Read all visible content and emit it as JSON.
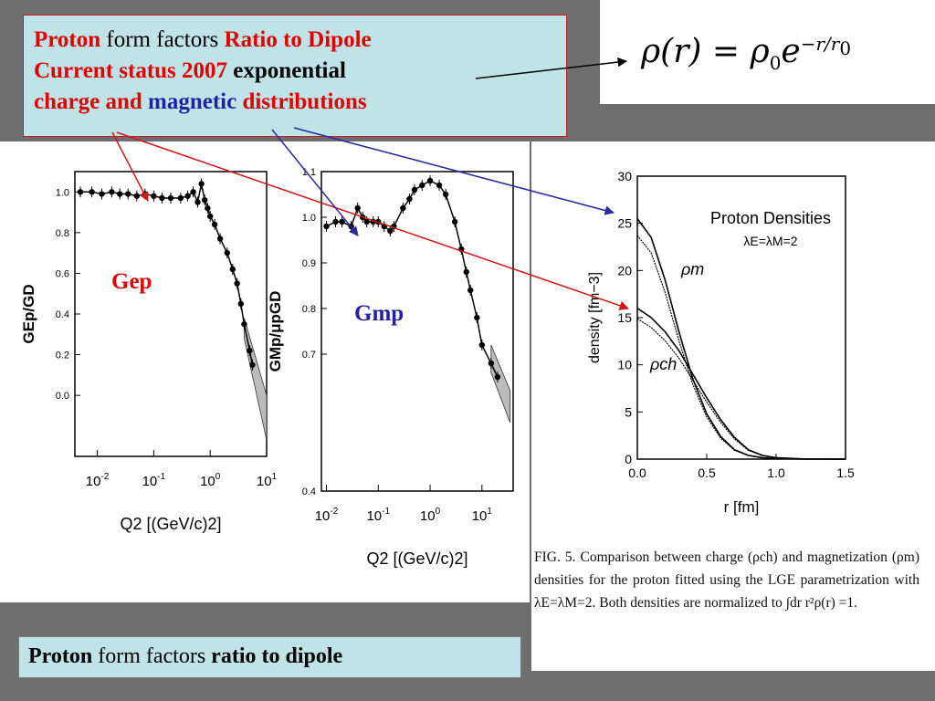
{
  "title": {
    "line1_a": "Proton",
    "line1_b": " form factors ",
    "line1_c": "Ratio to Dipole",
    "line2_a": "Current status  2007",
    "line2_b": " exponential",
    "line3_a": "charge and ",
    "line3_b": "magnetic",
    "line3_c": " distributions"
  },
  "formula": {
    "lhs": "ρ(r) = ρ",
    "sub": "0",
    "e": "e",
    "exp": "−r/r",
    "exp_sub": "0"
  },
  "labels": {
    "gep": "Gep",
    "gmp": "Gmp"
  },
  "caption": "FIG. 5. Comparison between charge (ρch) and magnetization (ρm) densities for the proton fitted using the LGE parametrization with λE=λM=2. Both densities are normalized to ∫dr r²ρ(r) =1.",
  "bottom": {
    "a": "Proton",
    "b": " form factors ",
    "c": "ratio to dipole"
  },
  "colors": {
    "title_red": "#e00000",
    "title_blue": "#2222a0",
    "box_fill": "#bfe3e6",
    "arrow_red": "#d01818",
    "arrow_blue": "#2a2aa0"
  },
  "chart_data": [
    {
      "type": "scatter",
      "xscale": "log",
      "xlim": [
        0.004,
        10
      ],
      "ylim": [
        -0.3,
        1.1
      ],
      "yticks": [
        "0.0",
        "0.2",
        "0.4",
        "0.6",
        "0.8",
        "1.0"
      ],
      "xticks": [
        "10-2",
        "10-1",
        "100",
        "101"
      ],
      "xlabel": "Q2  [(GeV/c)2]",
      "ylabel": "GEp/GD",
      "x": [
        0.005,
        0.008,
        0.012,
        0.018,
        0.025,
        0.035,
        0.05,
        0.07,
        0.1,
        0.14,
        0.2,
        0.3,
        0.4,
        0.5,
        0.6,
        0.7,
        0.8,
        0.9,
        1.0,
        1.2,
        1.5,
        2.0,
        2.5,
        3.0,
        3.5,
        4.0,
        5.0,
        5.6
      ],
      "y": [
        1.0,
        1.0,
        0.99,
        1.0,
        0.99,
        0.99,
        0.98,
        0.99,
        0.98,
        0.97,
        0.97,
        0.97,
        0.98,
        1.0,
        0.95,
        1.04,
        0.96,
        0.92,
        0.88,
        0.84,
        0.77,
        0.7,
        0.62,
        0.55,
        0.45,
        0.35,
        0.22,
        0.15
      ],
      "band": {
        "x": [
          4,
          10
        ],
        "lo": [
          0.28,
          -0.22
        ],
        "hi": [
          0.38,
          0.0
        ]
      }
    },
    {
      "type": "scatter",
      "xscale": "log",
      "xlim": [
        0.008,
        40
      ],
      "ylim": [
        0.4,
        1.1
      ],
      "yticks": [
        "0.4",
        "0.7",
        "0.8",
        "0.9",
        "1.0",
        "1.1"
      ],
      "xticks": [
        "10-2",
        "10-1",
        "100",
        "101"
      ],
      "xlabel": "Q2  [(GeV/c)2]",
      "ylabel": "GMp/μpGD",
      "x": [
        0.01,
        0.015,
        0.02,
        0.03,
        0.04,
        0.05,
        0.06,
        0.08,
        0.1,
        0.13,
        0.17,
        0.2,
        0.3,
        0.4,
        0.5,
        0.7,
        1.0,
        1.5,
        2.0,
        3.0,
        4.0,
        5.0,
        6.0,
        8.0,
        10,
        15,
        20
      ],
      "y": [
        0.98,
        0.99,
        0.99,
        0.98,
        1.02,
        1.0,
        0.99,
        0.99,
        0.99,
        0.98,
        0.97,
        0.98,
        1.02,
        1.04,
        1.06,
        1.07,
        1.08,
        1.07,
        1.05,
        0.99,
        0.93,
        0.88,
        0.84,
        0.78,
        0.72,
        0.68,
        0.65
      ],
      "band": {
        "x": [
          15,
          35
        ],
        "lo": [
          0.66,
          0.55
        ],
        "hi": [
          0.72,
          0.62
        ]
      }
    },
    {
      "type": "line",
      "title": "Proton Densities",
      "subtitle": "λE=λM=2",
      "xlabel": "r    [fm]",
      "ylabel": "density   [fm−3]",
      "xlim": [
        0,
        1.5
      ],
      "ylim": [
        0,
        30
      ],
      "xticks": [
        "0.0",
        "0.5",
        "1.0",
        "1.5"
      ],
      "yticks": [
        "0",
        "5",
        "10",
        "15",
        "20",
        "25",
        "30"
      ],
      "series": [
        {
          "name": "ρm",
          "x": [
            0,
            0.1,
            0.2,
            0.3,
            0.4,
            0.5,
            0.6,
            0.7,
            0.8,
            0.9,
            1.0,
            1.2,
            1.5
          ],
          "y": [
            25.5,
            23.5,
            19.0,
            13.5,
            8.5,
            4.8,
            2.4,
            1.0,
            0.4,
            0.15,
            0.05,
            0.0,
            0.0
          ]
        },
        {
          "name": "ρch",
          "x": [
            0,
            0.1,
            0.2,
            0.3,
            0.4,
            0.5,
            0.6,
            0.7,
            0.8,
            0.9,
            1.0,
            1.2,
            1.5
          ],
          "y": [
            16.0,
            15.0,
            13.5,
            11.5,
            9.0,
            6.5,
            4.2,
            2.3,
            1.0,
            0.4,
            0.15,
            0.02,
            0.0
          ]
        }
      ]
    }
  ]
}
